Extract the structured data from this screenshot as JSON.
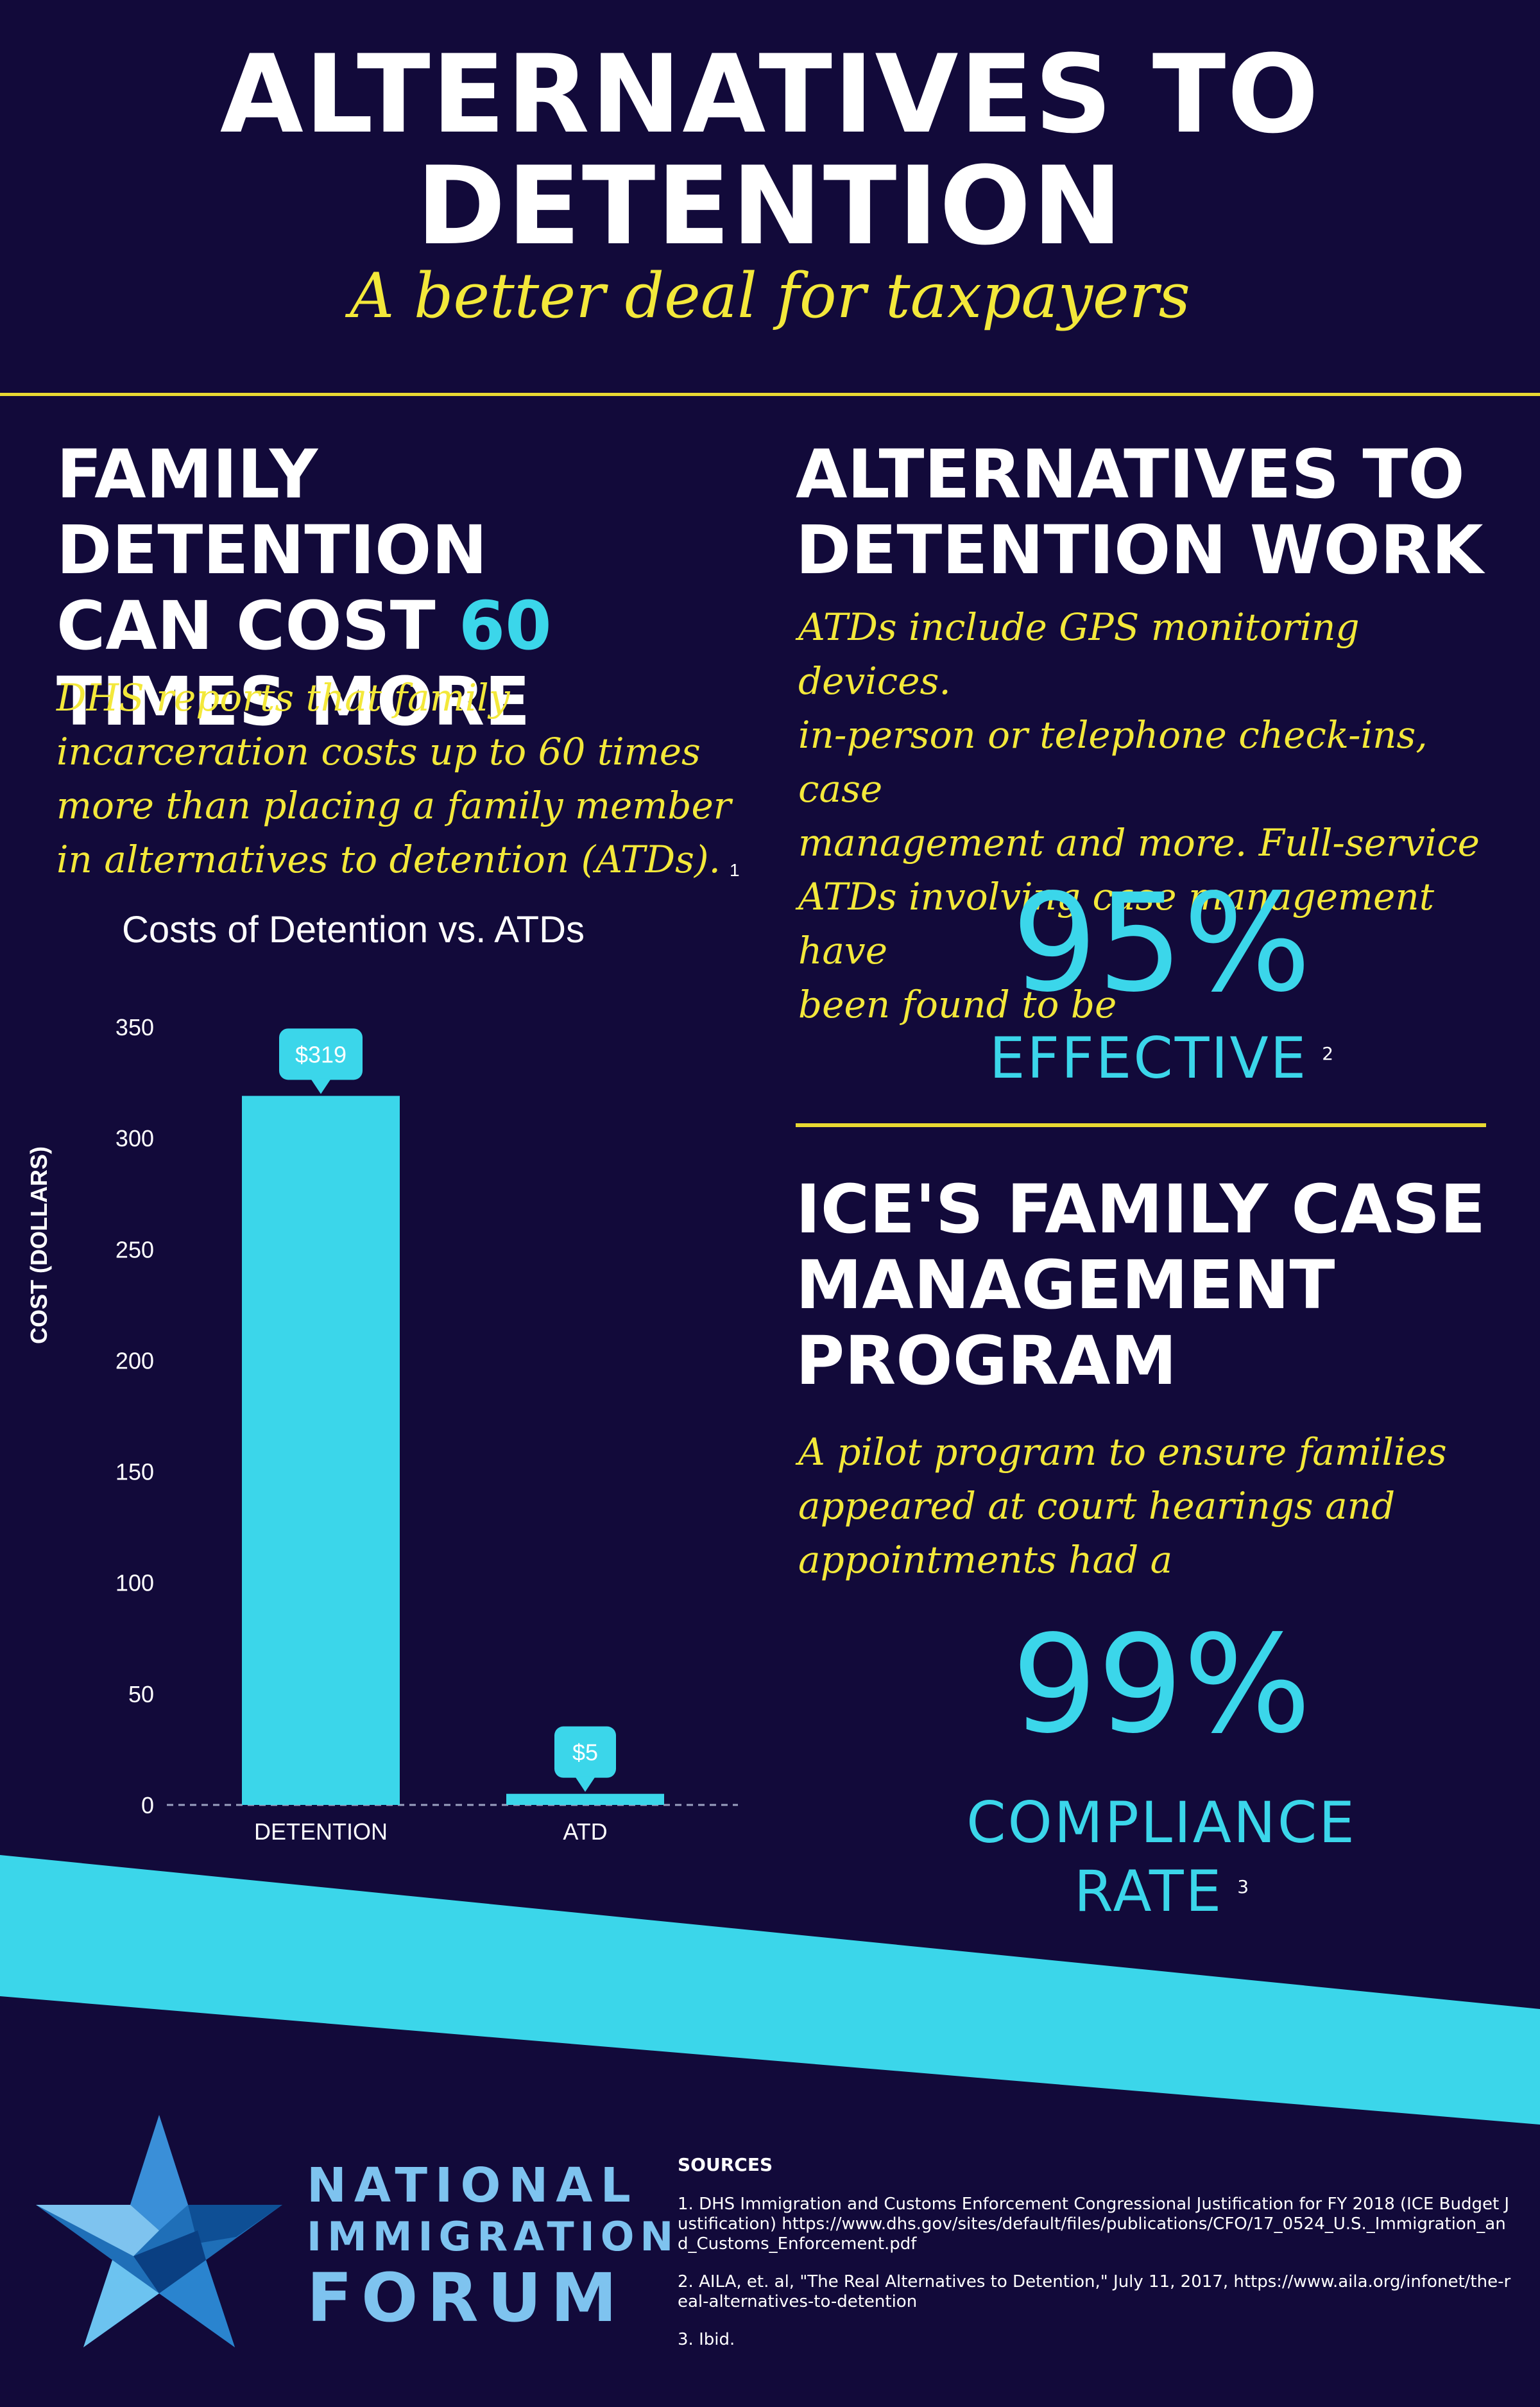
{
  "colors": {
    "background": "#120a3a",
    "accent_cyan": "#3bd6ea",
    "accent_yellow": "#f3e83a",
    "text": "#ffffff",
    "logo_blue": "#7ec3ef"
  },
  "header": {
    "title_line1": "ALTERNATIVES TO",
    "title_line2": "DETENTION",
    "subtitle": "A better deal for taxpayers"
  },
  "left": {
    "heading_line1": "FAMILY DETENTION",
    "heading_line2_a": "CAN COST ",
    "heading_line2_highlight": "60",
    "heading_line3": "TIMES MORE",
    "body_line1": "DHS reports that family",
    "body_line2": "incarceration costs up to 60 times",
    "body_line3": "more than placing a family member",
    "body_line4": "in alternatives to detention (ATDs).",
    "body_footnote": "1"
  },
  "chart_data": {
    "type": "bar",
    "title": "Costs of Detention vs. ATDs",
    "xlabel": "",
    "ylabel": "COST (DOLLARS)",
    "categories": [
      "DETENTION",
      "ATD"
    ],
    "values": [
      319,
      5
    ],
    "data_labels": [
      "$319",
      "$5"
    ],
    "ylim": [
      0,
      350
    ],
    "yticks": [
      0,
      50,
      100,
      150,
      200,
      250,
      300,
      350
    ],
    "grid": false,
    "bar_color": "#3bd6ea"
  },
  "right_top": {
    "heading_line1": "ALTERNATIVES TO",
    "heading_line2": "DETENTION WORK",
    "body_line1": "ATDs include GPS monitoring devices.",
    "body_line2": "in-person or telephone check-ins, case",
    "body_line3": "management and more. Full-service",
    "body_line4": "ATDs involving case management have",
    "body_line5": "been found to be",
    "stat_value": "95%",
    "stat_label": "EFFECTIVE",
    "stat_footnote": "2"
  },
  "right_bottom": {
    "heading_line1": "ICE'S FAMILY CASE",
    "heading_line2": "MANAGEMENT",
    "heading_line3": "PROGRAM",
    "body_line1": "A pilot program to ensure families",
    "body_line2": "appeared at court hearings and",
    "body_line3": "appointments had a",
    "stat_value": "99%",
    "stat_label_line1": "COMPLIANCE",
    "stat_label_line2": "RATE",
    "stat_footnote": "3"
  },
  "footer": {
    "logo_icon": "star-icon",
    "org_line1": "NATIONAL",
    "org_line2": "IMMIGRATION",
    "org_line3": "FORUM",
    "sources_heading": "SOURCES",
    "source_1": "1. DHS Immigration and Customs Enforcement Congressional Justification for FY 2018 (ICE Budget Justification) https://www.dhs.gov/sites/default/files/publications/CFO/17_0524_U.S._Immigration_and_Customs_Enforcement.pdf",
    "source_2": "2. AILA, et. al, \"The Real Alternatives to Detention,\" July 11, 2017, https://www.aila.org/infonet/the-real-alternatives-to-detention",
    "source_3": "3. Ibid."
  }
}
